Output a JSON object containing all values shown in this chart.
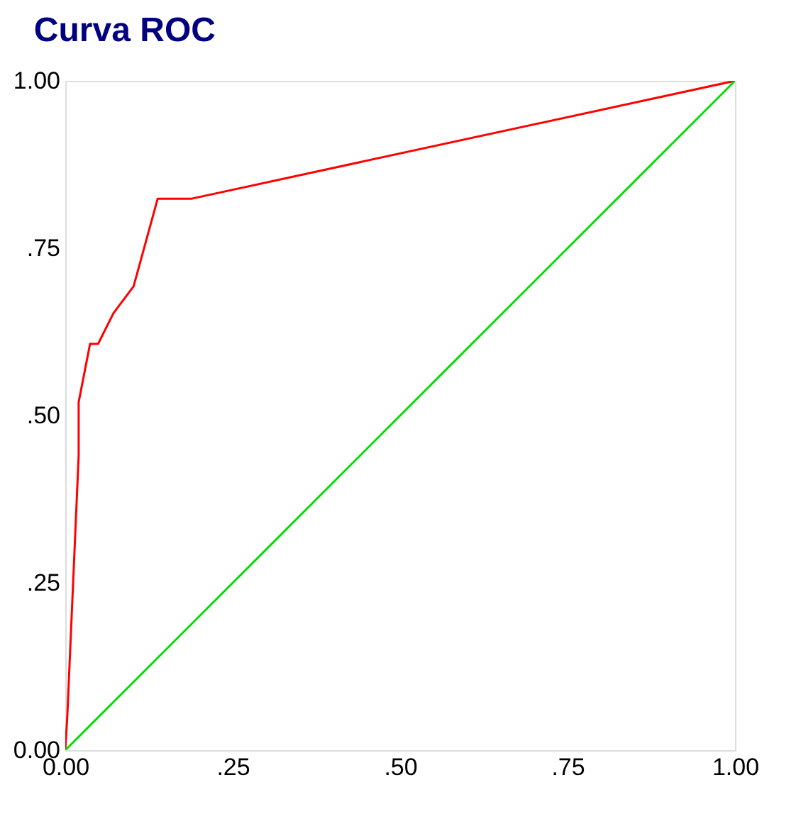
{
  "chart_data": {
    "type": "line",
    "title": "Curva ROC",
    "series": [
      {
        "color": "#ff0000",
        "x": [
          0,
          0.003,
          0.02,
          0.02,
          0.037,
          0.049,
          0.072,
          0.102,
          0.138,
          0.189,
          1
        ],
        "values": [
          0,
          0.05,
          0.44,
          0.52,
          0.607,
          0.607,
          0.653,
          0.693,
          0.824,
          0.824,
          1
        ]
      },
      {
        "color": "#00dd00",
        "x": [
          0,
          1
        ],
        "values": [
          0,
          1
        ]
      }
    ],
    "xlim": [
      0,
      1
    ],
    "ylim": [
      0,
      1
    ],
    "xticks": [
      {
        "value": 0,
        "label": "0.00"
      },
      {
        "value": 0.25,
        "label": ".25"
      },
      {
        "value": 0.5,
        "label": ".50"
      },
      {
        "value": 0.75,
        "label": ".75"
      },
      {
        "value": 1,
        "label": "1.00"
      }
    ],
    "yticks": [
      {
        "value": 0,
        "label": "0.00"
      },
      {
        "value": 0.25,
        "label": ".25"
      },
      {
        "value": 0.5,
        "label": ".50"
      },
      {
        "value": 0.75,
        "label": ".75"
      },
      {
        "value": 1,
        "label": "1.00"
      }
    ],
    "grid": false,
    "marker": "none",
    "line_style": "solid"
  }
}
